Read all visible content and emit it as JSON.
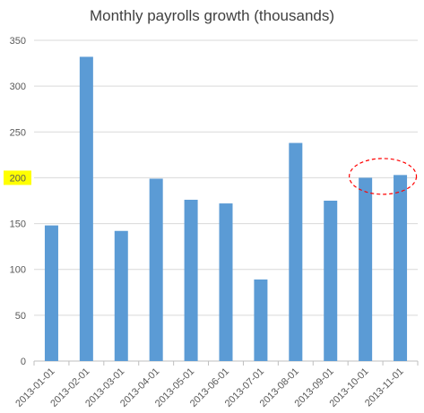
{
  "chart_data": {
    "type": "bar",
    "title": "Monthly payrolls growth (thousands)",
    "xlabel": "",
    "ylabel": "",
    "categories": [
      "2013-01-01",
      "2013-02-01",
      "2013-03-01",
      "2013-04-01",
      "2013-05-01",
      "2013-06-01",
      "2013-07-01",
      "2013-08-01",
      "2013-09-01",
      "2013-10-01",
      "2013-11-01"
    ],
    "values": [
      148,
      332,
      142,
      199,
      176,
      172,
      89,
      238,
      175,
      200,
      203
    ],
    "ylim": [
      0,
      350
    ],
    "yticks": [
      0,
      50,
      100,
      150,
      200,
      250,
      300,
      350
    ],
    "grid": true,
    "legend": "none",
    "bar_color": "#5B9BD5",
    "highlighted_ytick": 200,
    "highlight_color": "#FFFF00",
    "annotation_color": "#FF0000"
  }
}
